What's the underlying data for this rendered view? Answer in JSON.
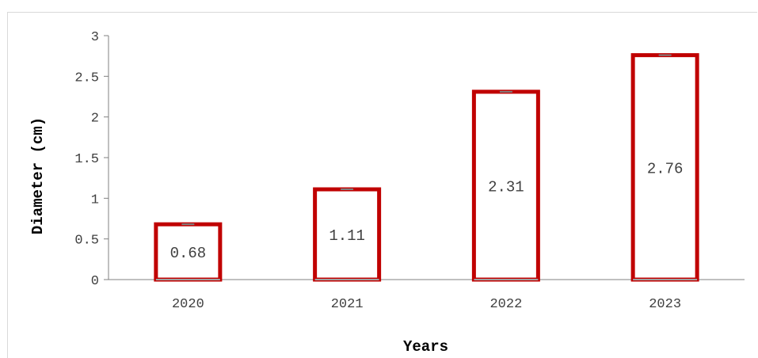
{
  "chart_data": {
    "type": "bar",
    "title": "",
    "xlabel": "Years",
    "ylabel": "Diameter (cm)",
    "categories": [
      "2020",
      "2021",
      "2022",
      "2023"
    ],
    "values": [
      0.68,
      1.11,
      2.31,
      2.76
    ],
    "value_labels": [
      "0.68",
      "1.11",
      "2.31",
      "2.76"
    ],
    "ylim": [
      0,
      3
    ],
    "yticks": [
      "0",
      "0.5",
      "1",
      "1.5",
      "2",
      "2.5",
      "3"
    ],
    "ytick_values": [
      0,
      0.5,
      1,
      1.5,
      2,
      2.5,
      3
    ],
    "grid": false,
    "legend": "none",
    "bar_edge_color": "#c00000",
    "bar_fill_color": "#ffffff",
    "error_bar_color": "#808080"
  }
}
